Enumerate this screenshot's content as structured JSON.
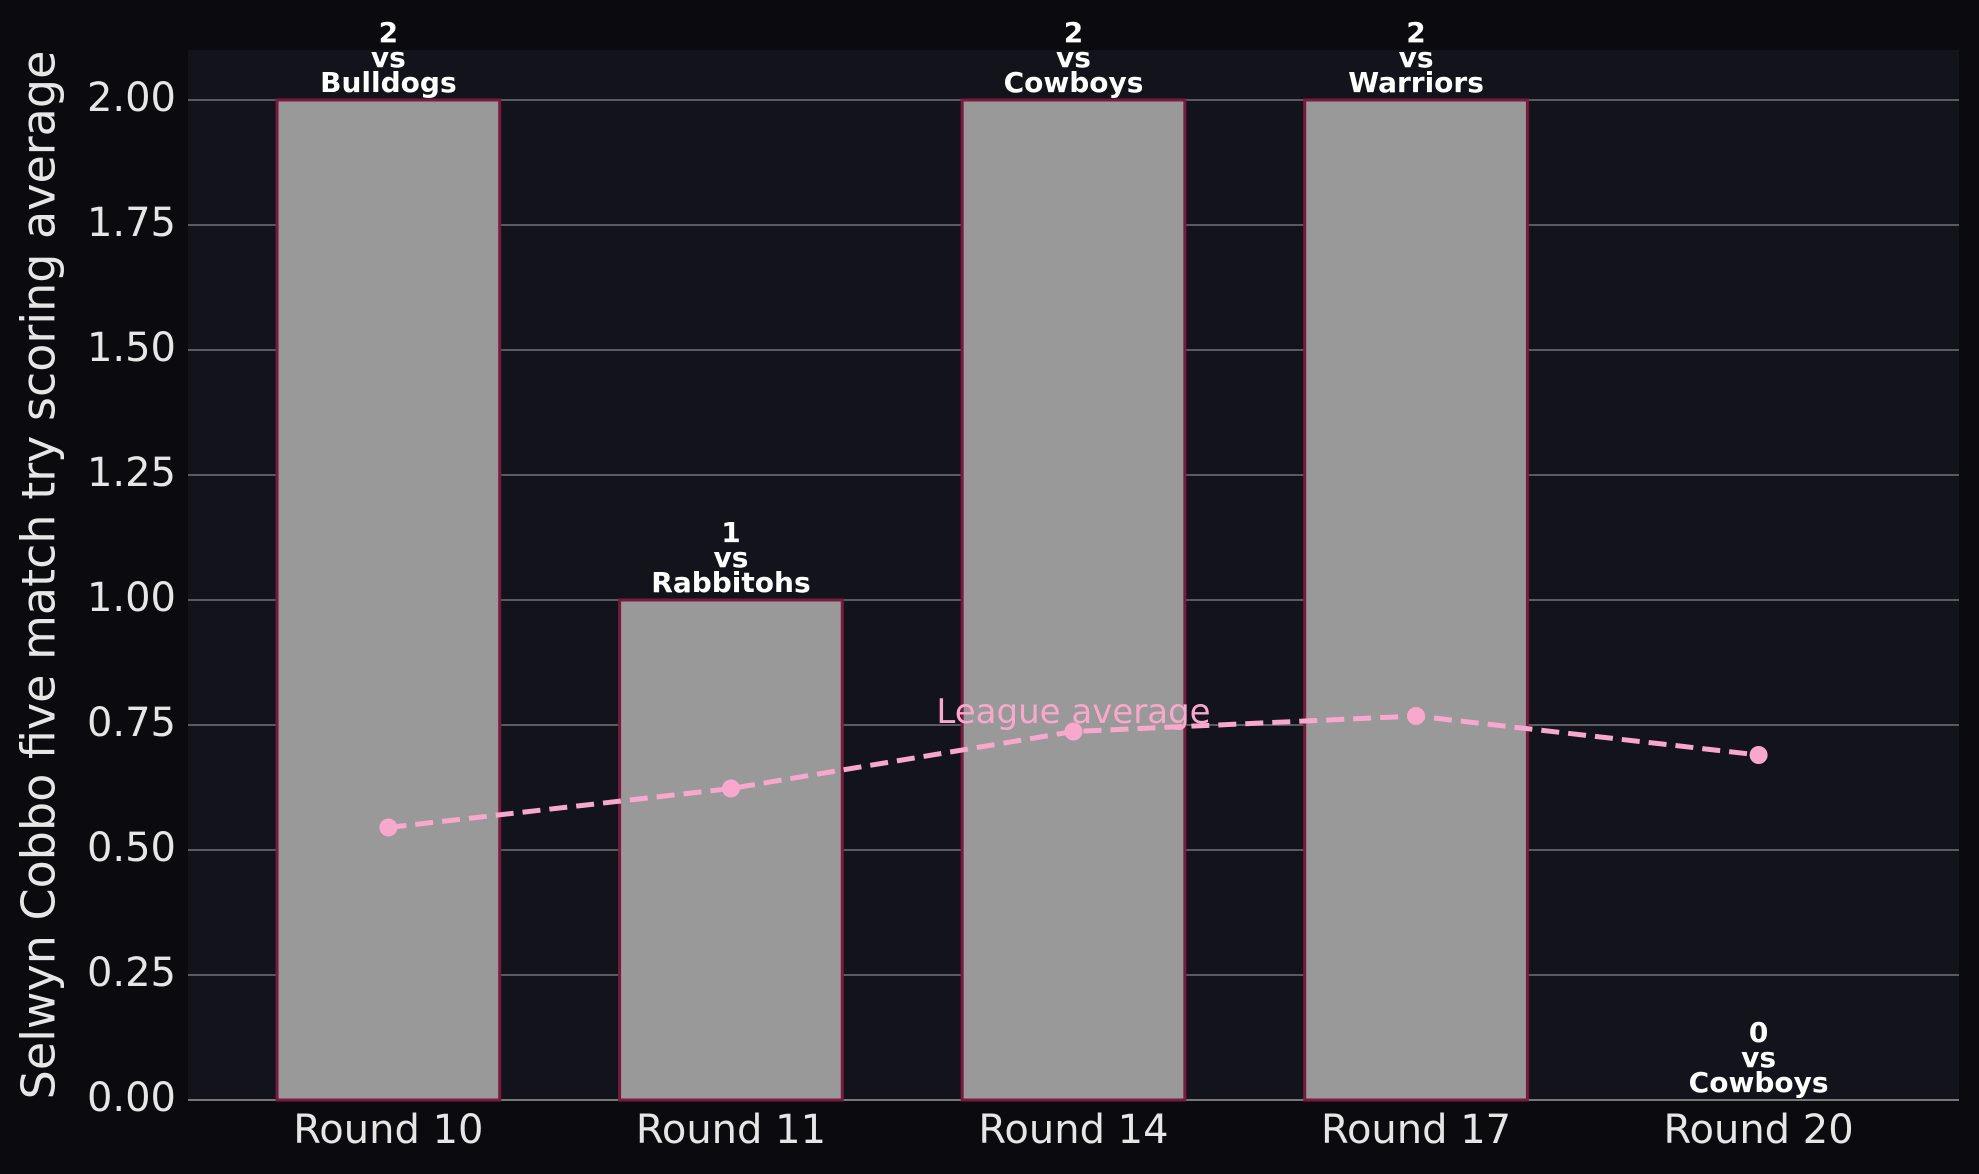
{
  "chart_data": {
    "type": "bar",
    "ylabel": "Selwyn Cobbo five match try scoring average",
    "categories": [
      "Round 10",
      "Round 11",
      "Round 14",
      "Round 17",
      "Round 20"
    ],
    "values": [
      2,
      1,
      2,
      2,
      0
    ],
    "opponent_labels": [
      [
        "vs",
        "Bulldogs"
      ],
      [
        "vs",
        "Rabbitohs"
      ],
      [
        "vs",
        "Cowboys"
      ],
      [
        "vs",
        "Warriors"
      ],
      [
        "vs",
        "Cowboys"
      ]
    ],
    "color": "#999999",
    "edge_color": "#7a1a3e",
    "line": {
      "name": "League average",
      "color": "#f7a8cc",
      "values": [
        0.545,
        0.623,
        0.737,
        0.768,
        0.69
      ]
    },
    "ylim": [
      0,
      2.1
    ],
    "yticks": [
      {
        "value": 0,
        "label": "0.00"
      },
      {
        "value": 0.25,
        "label": "0.25"
      },
      {
        "value": 0.5,
        "label": "0.50"
      },
      {
        "value": 0.75,
        "label": "0.75"
      },
      {
        "value": 1,
        "label": "1.00"
      },
      {
        "value": 1.25,
        "label": "1.25"
      },
      {
        "value": 1.5,
        "label": "1.50"
      },
      {
        "value": 1.75,
        "label": "1.75"
      },
      {
        "value": 2,
        "label": "2.00"
      }
    ],
    "grid": true
  }
}
